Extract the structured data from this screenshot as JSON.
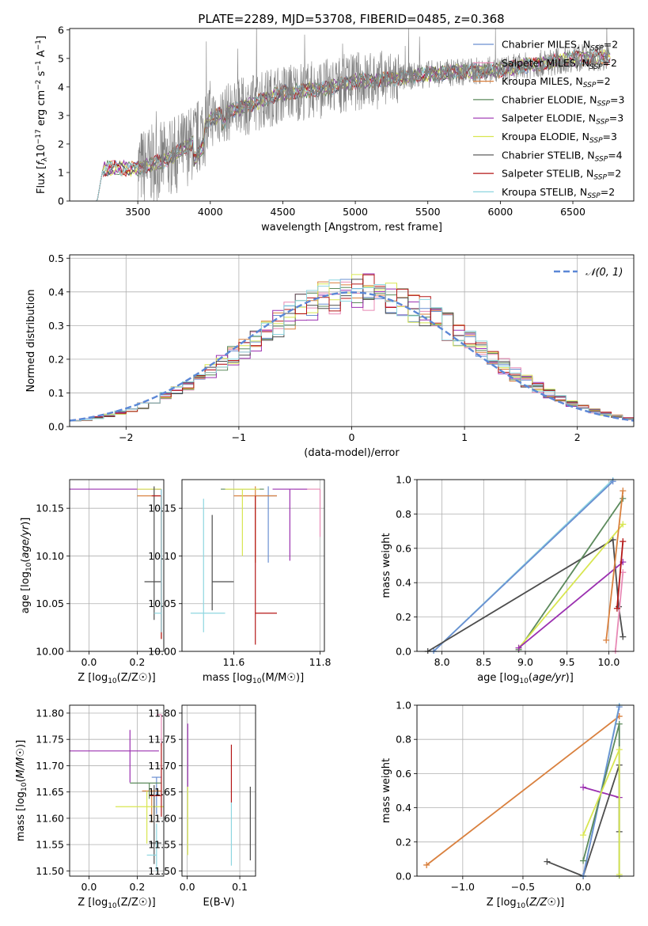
{
  "figure_title": "PLATE=2289, MJD=53708, FIBERID=0485, z=0.368",
  "colors": {
    "chabrier_miles": "#6a8fd1",
    "salpeter_miles": "#e889b5",
    "kroupa_miles": "#d9803e",
    "chabrier_elodie": "#5c8a5c",
    "salpeter_elodie": "#9b30b0",
    "kroupa_elodie": "#d8e650",
    "chabrier_stelib": "#4d4d4d",
    "salpeter_stelib": "#b41616",
    "kroupa_stelib": "#8ed6e0",
    "data_grey": "#808080",
    "normal": "#5b87d6"
  },
  "chart_data": [
    {
      "id": "spectrum",
      "type": "line",
      "title": "PLATE=2289, MJD=53708, FIBERID=0485, z=0.368",
      "xlabel": "wavelength [Angstrom, rest frame]",
      "ylabel": "Flux [f_λ 10^-17 erg cm^-2 s^-1 A^-1]",
      "xlim": [
        3030,
        6920
      ],
      "ylim": [
        0,
        6.05
      ],
      "xticks": [
        "3500",
        "4000",
        "4500",
        "5000",
        "5500",
        "6000",
        "6500"
      ],
      "yticks": [
        "0",
        "1",
        "2",
        "3",
        "4",
        "5",
        "6"
      ],
      "grid": false,
      "legend_position": "top-right",
      "legend": [
        "Chabrier MILES, N_SSP=2",
        "Salpeter MILES, N_SSP=2",
        "Kroupa MILES, N_SSP=2",
        "Chabrier ELODIE, N_SSP=3",
        "Salpeter ELODIE, N_SSP=3",
        "Kroupa ELODIE, N_SSP=3",
        "Chabrier STELIB, N_SSP=4",
        "Salpeter STELIB, N_SSP=2",
        "Kroupa STELIB, N_SSP=2"
      ],
      "continuum_x": [
        3220,
        3260,
        3500,
        3700,
        3900,
        4000,
        4200,
        4500,
        4800,
        5000,
        5200,
        5500,
        5800,
        6000,
        6200,
        6500,
        6750
      ],
      "continuum_y": [
        0,
        1.15,
        1.15,
        1.45,
        2.1,
        2.9,
        3.25,
        3.8,
        3.95,
        4.2,
        4.25,
        4.45,
        4.55,
        4.6,
        4.75,
        5.0,
        5.05
      ],
      "data_range": [
        3500,
        6750
      ]
    },
    {
      "id": "residuals",
      "type": "line",
      "xlabel": "(data-model)/error",
      "ylabel": "Normed distribution",
      "xlim": [
        -2.5,
        2.5
      ],
      "ylim": [
        0,
        0.51
      ],
      "xticks": [
        -2,
        -1,
        0,
        1,
        2
      ],
      "yticks": [
        0.0,
        0.1,
        0.2,
        0.3,
        0.4,
        0.5
      ],
      "grid": true,
      "legend": [
        "𝒩(0, 1)"
      ],
      "legend_position": "top-right",
      "bin_width": 0.1
    },
    {
      "id": "age_vs_Z",
      "type": "scatter",
      "xlabel": "Z [log10(Z/Z☉)]",
      "ylabel": "age  [log10(age/yr)]",
      "xlim": [
        -0.08,
        0.31
      ],
      "ylim": [
        10.0,
        10.18
      ],
      "xticks": [
        0.0,
        0.2
      ],
      "yticks": [
        10.0,
        10.05,
        10.1,
        10.15
      ],
      "grid": true,
      "points": [
        {
          "model": "chabrier_miles",
          "x": 0.3,
          "y": 10.17,
          "xerr": [
            0.04,
            0.0
          ],
          "yerr": [
            0.15,
            0.0
          ]
        },
        {
          "model": "salpeter_miles",
          "x": 0.3,
          "y": 10.17,
          "xerr": [
            0.02,
            0.0
          ],
          "yerr": [
            0.15,
            0.0
          ]
        },
        {
          "model": "kroupa_miles",
          "x": 0.3,
          "y": 10.163,
          "xerr": [
            0.1,
            0.0
          ],
          "yerr": [
            0.15,
            0.0
          ]
        },
        {
          "model": "chabrier_elodie",
          "x": 0.3,
          "y": 10.17,
          "xerr": [
            0.0,
            0.0
          ],
          "yerr": [
            0.0,
            0.0
          ]
        },
        {
          "model": "salpeter_elodie",
          "x": 0.3,
          "y": 10.17,
          "xerr": [
            0.38,
            0.0
          ],
          "yerr": [
            0.0,
            0.0
          ]
        },
        {
          "model": "kroupa_elodie",
          "x": 0.3,
          "y": 10.17,
          "xerr": [
            0.1,
            0.0
          ],
          "yerr": [
            0.0,
            0.0
          ]
        },
        {
          "model": "chabrier_stelib",
          "x": 0.27,
          "y": 10.073,
          "xerr": [
            0.04,
            0.03
          ],
          "yerr": [
            0.04,
            0.1
          ]
        },
        {
          "model": "salpeter_stelib",
          "x": 0.3,
          "y": 10.163,
          "xerr": [
            0.04,
            0.0
          ],
          "yerr": [
            0.15,
            0.0
          ]
        },
        {
          "model": "kroupa_stelib",
          "x": 0.3,
          "y": 10.04,
          "xerr": [
            0.03,
            0.0
          ],
          "yerr": [
            0.02,
            0.13
          ]
        }
      ]
    },
    {
      "id": "age_vs_mass",
      "type": "scatter",
      "xlabel": "mass [log10(M/M☉)]",
      "ylabel": "",
      "xlim": [
        11.48,
        11.81
      ],
      "ylim": [
        10.0,
        10.18
      ],
      "xticks": [
        11.6,
        11.8
      ],
      "yticks": [
        10.0,
        10.05,
        10.1,
        10.15
      ],
      "grid": true,
      "points": [
        {
          "model": "chabrier_miles",
          "x": 11.68,
          "y": 10.163,
          "xerr": [
            0.03,
            0.02
          ],
          "yerr": [
            0.07,
            0.01
          ]
        },
        {
          "model": "salpeter_miles",
          "x": 11.8,
          "y": 10.17,
          "xerr": [
            0.06,
            0.0
          ],
          "yerr": [
            0.05,
            0.0
          ]
        },
        {
          "model": "kroupa_miles",
          "x": 11.65,
          "y": 10.163,
          "xerr": [
            0.05,
            0.05
          ],
          "yerr": [
            0.07,
            0.01
          ]
        },
        {
          "model": "chabrier_elodie",
          "x": 11.67,
          "y": 10.17,
          "xerr": [
            0.1,
            0.0
          ],
          "yerr": [
            0.0,
            0.0
          ]
        },
        {
          "model": "salpeter_elodie",
          "x": 11.73,
          "y": 10.17,
          "xerr": [
            0.04,
            0.04
          ],
          "yerr": [
            0.075,
            0.0
          ]
        },
        {
          "model": "kroupa_elodie",
          "x": 11.62,
          "y": 10.17,
          "xerr": [
            0.04,
            0.04
          ],
          "yerr": [
            0.07,
            0.0
          ]
        },
        {
          "model": "chabrier_stelib",
          "x": 11.55,
          "y": 10.073,
          "xerr": [
            0.0,
            0.05
          ],
          "yerr": [
            0.03,
            0.07
          ]
        },
        {
          "model": "salpeter_stelib",
          "x": 11.65,
          "y": 10.04,
          "xerr": [
            0.0,
            0.05
          ],
          "yerr": [
            0.033,
            0.123
          ]
        },
        {
          "model": "kroupa_stelib",
          "x": 11.53,
          "y": 10.04,
          "xerr": [
            0.03,
            0.05
          ],
          "yerr": [
            0.02,
            0.12
          ]
        }
      ]
    },
    {
      "id": "weight_vs_age",
      "type": "line",
      "xlabel": "age  [log10(age/yr)]",
      "ylabel": "mass weight",
      "xlim": [
        7.7,
        10.3
      ],
      "ylim": [
        0,
        1
      ],
      "xticks": [
        8.0,
        8.5,
        9.0,
        9.5,
        10.0
      ],
      "yticks": [
        0.0,
        0.2,
        0.4,
        0.6,
        0.8,
        1.0
      ],
      "grid": true,
      "series": [
        {
          "model": "kroupa_stelib",
          "x": [
            7.9,
            10.05
          ],
          "y": [
            0.0,
            1.0
          ]
        },
        {
          "model": "chabrier_miles",
          "x": [
            7.9,
            10.05
          ],
          "y": [
            0.0,
            0.99
          ]
        },
        {
          "model": "chabrier_stelib",
          "x": [
            7.83,
            10.05,
            10.12,
            10.17
          ],
          "y": [
            0.0,
            0.65,
            0.26,
            0.085
          ]
        },
        {
          "model": "chabrier_elodie",
          "x": [
            8.92,
            10.17
          ],
          "y": [
            0.01,
            0.89
          ]
        },
        {
          "model": "kroupa_elodie",
          "x": [
            8.92,
            10.17
          ],
          "y": [
            0.02,
            0.74
          ]
        },
        {
          "model": "salpeter_elodie",
          "x": [
            8.92,
            10.17
          ],
          "y": [
            0.02,
            0.52
          ]
        },
        {
          "model": "kroupa_miles",
          "x": [
            9.97,
            10.17
          ],
          "y": [
            0.065,
            0.935
          ]
        },
        {
          "model": "salpeter_miles",
          "x": [
            10.08,
            10.17
          ],
          "y": [
            0.0,
            0.46
          ]
        },
        {
          "model": "salpeter_stelib",
          "x": [
            10.1,
            10.17
          ],
          "y": [
            0.25,
            0.64
          ]
        }
      ]
    },
    {
      "id": "mass_vs_Z",
      "type": "scatter",
      "xlabel": "Z [log10(Z/Z☉)]",
      "ylabel": "mass [log10(M/M☉)]",
      "xlim": [
        -0.08,
        0.31
      ],
      "ylim": [
        11.49,
        11.815
      ],
      "xticks": [
        0.0,
        0.2
      ],
      "yticks": [
        11.5,
        11.55,
        11.6,
        11.65,
        11.7,
        11.75,
        11.8
      ],
      "grid": true,
      "points": [
        {
          "model": "chabrier_miles",
          "x": 0.28,
          "y": 11.678,
          "xerr": [
            0.02,
            0.02
          ],
          "yerr": [
            0.07,
            0.0
          ]
        },
        {
          "model": "salpeter_miles",
          "x": 0.3,
          "y": 11.797,
          "xerr": [
            0.02,
            0.0
          ],
          "yerr": [
            0.06,
            0.0
          ]
        },
        {
          "model": "kroupa_miles",
          "x": 0.26,
          "y": 11.652,
          "xerr": [
            0.04,
            0.04
          ],
          "yerr": [
            0.06,
            0.0
          ]
        },
        {
          "model": "chabrier_elodie",
          "x": 0.25,
          "y": 11.667,
          "xerr": [
            0.08,
            0.05
          ],
          "yerr": [
            0.03,
            0.0
          ]
        },
        {
          "model": "salpeter_elodie",
          "x": 0.17,
          "y": 11.728,
          "xerr": [
            0.25,
            0.12
          ],
          "yerr": [
            0.06,
            0.04
          ]
        },
        {
          "model": "kroupa_elodie",
          "x": 0.24,
          "y": 11.622,
          "xerr": [
            0.13,
            0.07
          ],
          "yerr": [
            0.07,
            0.03
          ]
        },
        {
          "model": "chabrier_stelib",
          "x": 0.27,
          "y": 11.553,
          "xerr": [
            0.02,
            0.03
          ],
          "yerr": [
            0.04,
            0.11
          ]
        },
        {
          "model": "salpeter_stelib",
          "x": 0.3,
          "y": 11.643,
          "xerr": [
            0.05,
            0.0
          ],
          "yerr": [
            0.04,
            0.1
          ]
        },
        {
          "model": "kroupa_stelib",
          "x": 0.28,
          "y": 11.53,
          "xerr": [
            0.04,
            0.0
          ],
          "yerr": [
            0.03,
            0.06
          ]
        }
      ]
    },
    {
      "id": "mass_vs_ebv",
      "type": "scatter",
      "xlabel": "E(B-V)",
      "ylabel": "",
      "xlim": [
        -0.01,
        0.13
      ],
      "ylim": [
        11.49,
        11.815
      ],
      "xticks": [
        0.0,
        0.1
      ],
      "yticks": [
        11.5,
        11.55,
        11.6,
        11.65,
        11.7,
        11.75,
        11.8
      ],
      "grid": true,
      "points": [
        {
          "model": "salpeter_elodie",
          "x": 0.001,
          "y": 11.72,
          "xerr": [
            0,
            0
          ],
          "yerr": [
            0.06,
            0.06
          ]
        },
        {
          "model": "kroupa_elodie",
          "x": 0.001,
          "y": 11.6,
          "xerr": [
            0,
            0
          ],
          "yerr": [
            0.07,
            0.06
          ]
        },
        {
          "model": "salpeter_stelib",
          "x": 0.084,
          "y": 11.69,
          "xerr": [
            0,
            0
          ],
          "yerr": [
            0.06,
            0.05
          ]
        },
        {
          "model": "kroupa_stelib",
          "x": 0.084,
          "y": 11.57,
          "xerr": [
            0,
            0
          ],
          "yerr": [
            0.06,
            0.06
          ]
        },
        {
          "model": "chabrier_stelib",
          "x": 0.12,
          "y": 11.59,
          "xerr": [
            0,
            0
          ],
          "yerr": [
            0.07,
            0.07
          ]
        }
      ]
    },
    {
      "id": "weight_vs_Z",
      "type": "line",
      "xlabel": "Z [log10(Z/Z☉)]",
      "ylabel": "mass weight",
      "xlim": [
        -1.38,
        0.42
      ],
      "ylim": [
        0,
        1
      ],
      "xticks": [
        -1.0,
        -0.5,
        0.0
      ],
      "yticks": [
        0.0,
        0.2,
        0.4,
        0.6,
        0.8,
        1.0
      ],
      "grid": true,
      "series": [
        {
          "model": "kroupa_miles",
          "x": [
            -1.3,
            0.3
          ],
          "y": [
            0.065,
            0.935
          ]
        },
        {
          "model": "salpeter_elodie",
          "x": [
            0.0,
            0.3
          ],
          "y": [
            0.52,
            0.46
          ]
        },
        {
          "model": "chabrier_stelib",
          "x": [
            -0.3,
            0.0,
            0.3,
            0.3
          ],
          "y": [
            0.085,
            0.0,
            0.65,
            0.26
          ]
        },
        {
          "model": "kroupa_stelib",
          "x": [
            0.0,
            0.3
          ],
          "y": [
            0.0,
            1.0
          ]
        },
        {
          "model": "chabrier_miles",
          "x": [
            0.0,
            0.3
          ],
          "y": [
            0.0,
            0.99
          ]
        },
        {
          "model": "chabrier_elodie",
          "x": [
            0.0,
            0.3,
            0.3
          ],
          "y": [
            0.09,
            0.89,
            0.0
          ]
        },
        {
          "model": "kroupa_elodie",
          "x": [
            0.0,
            0.3,
            0.3
          ],
          "y": [
            0.24,
            0.74,
            0.01
          ]
        }
      ]
    }
  ]
}
